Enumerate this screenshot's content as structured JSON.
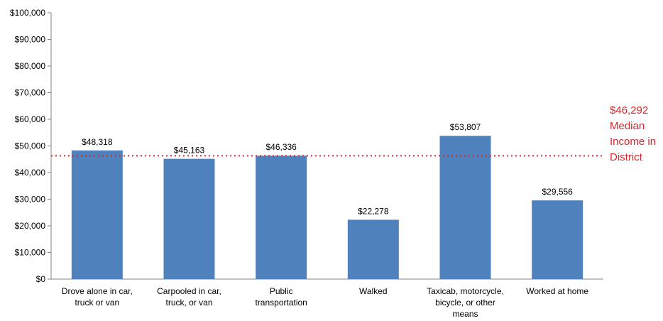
{
  "chart_data": {
    "type": "bar",
    "categories": [
      [
        "Drove alone in car,",
        "truck or van"
      ],
      [
        "Carpooled in car,",
        "truck, or van"
      ],
      [
        "Public",
        "transportation"
      ],
      [
        "Walked"
      ],
      [
        "Taxicab, motorcycle,",
        "bicycle, or other",
        "means"
      ],
      [
        "Worked at home"
      ]
    ],
    "values": [
      48318,
      45163,
      46336,
      22278,
      53807,
      29556
    ],
    "data_labels": [
      "$48,318",
      "$45,163",
      "$46,336",
      "$22,278",
      "$53,807",
      "$29,556"
    ],
    "yticks": [
      0,
      10000,
      20000,
      30000,
      40000,
      50000,
      60000,
      70000,
      80000,
      90000,
      100000
    ],
    "ytick_labels": [
      "$0",
      "$10,000",
      "$20,000",
      "$30,000",
      "$40,000",
      "$50,000",
      "$60,000",
      "$70,000",
      "$80,000",
      "$90,000",
      "$100,000"
    ],
    "ylim": [
      0,
      100000
    ],
    "grid": false,
    "bar_color": "#4f81bd",
    "reference_line": {
      "value": 46292,
      "label_lines": [
        "$46,292",
        "Median",
        "Income in",
        "District"
      ],
      "color": "#d9262a",
      "style": "dotted"
    }
  }
}
